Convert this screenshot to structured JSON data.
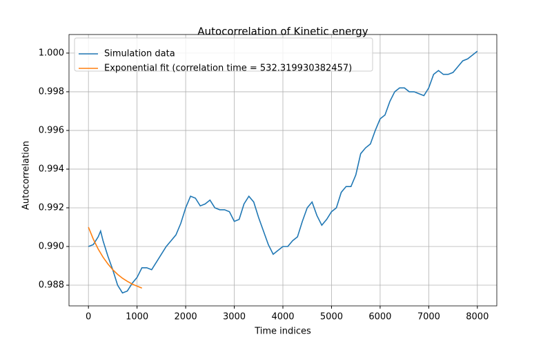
{
  "chart_data": {
    "type": "line",
    "title": "Autocorrelation of Kinetic energy",
    "x_label": "Time indices",
    "y_label": "Autocorrelation",
    "xlim": [
      -400,
      8400
    ],
    "ylim": [
      0.98693,
      1.00096
    ],
    "xticks": [
      0,
      1000,
      2000,
      3000,
      4000,
      5000,
      6000,
      7000,
      8000
    ],
    "yticks": [
      {
        "value": 0.988,
        "label": "0.988"
      },
      {
        "value": 0.99,
        "label": "0.990"
      },
      {
        "value": 0.992,
        "label": "0.992"
      },
      {
        "value": 0.994,
        "label": "0.994"
      },
      {
        "value": 0.996,
        "label": "0.996"
      },
      {
        "value": 0.998,
        "label": "0.998"
      },
      {
        "value": 1.0,
        "label": "1.000"
      }
    ],
    "grid": true,
    "legend": "upper left",
    "series": [
      {
        "name": "Simulation data",
        "color": "#1f77b4",
        "x": [
          0,
          100,
          200,
          250,
          300,
          400,
          500,
          600,
          700,
          800,
          900,
          1000,
          1100,
          1200,
          1300,
          1400,
          1500,
          1600,
          1700,
          1800,
          1900,
          2000,
          2100,
          2200,
          2300,
          2400,
          2500,
          2600,
          2700,
          2800,
          2900,
          3000,
          3100,
          3200,
          3300,
          3400,
          3500,
          3600,
          3700,
          3800,
          3900,
          4000,
          4100,
          4200,
          4300,
          4400,
          4500,
          4600,
          4700,
          4800,
          4900,
          5000,
          5100,
          5200,
          5300,
          5400,
          5500,
          5600,
          5700,
          5800,
          5900,
          6000,
          6100,
          6200,
          6300,
          6400,
          6500,
          6600,
          6700,
          6800,
          6900,
          7000,
          7100,
          7200,
          7300,
          7400,
          7500,
          7600,
          7700,
          7800,
          7900,
          8000
        ],
        "values": [
          0.99,
          0.9901,
          0.9905,
          0.9908,
          0.9903,
          0.9895,
          0.9888,
          0.988,
          0.9876,
          0.9877,
          0.9881,
          0.9884,
          0.9889,
          0.9889,
          0.9888,
          0.9892,
          0.9896,
          0.99,
          0.9903,
          0.9906,
          0.9912,
          0.992,
          0.9926,
          0.9925,
          0.9921,
          0.9922,
          0.9924,
          0.992,
          0.9919,
          0.9919,
          0.9918,
          0.9913,
          0.9914,
          0.9922,
          0.9926,
          0.9923,
          0.9915,
          0.9908,
          0.9901,
          0.9896,
          0.9898,
          0.99,
          0.99,
          0.9903,
          0.9905,
          0.9913,
          0.992,
          0.9923,
          0.9916,
          0.9911,
          0.9914,
          0.9918,
          0.992,
          0.9928,
          0.9931,
          0.9931,
          0.9937,
          0.9948,
          0.9951,
          0.9953,
          0.996,
          0.9966,
          0.9968,
          0.9975,
          0.998,
          0.9982,
          0.9982,
          0.998,
          0.998,
          0.9979,
          0.9978,
          0.9982,
          0.9989,
          0.9991,
          0.9989,
          0.9989,
          0.999,
          0.9993,
          0.9996,
          0.9997,
          0.9999,
          1.0001
        ]
      },
      {
        "name": "Exponential fit (correlation time = 532.319930382457)",
        "color": "#ff7f0e",
        "x": [
          0,
          100,
          200,
          300,
          400,
          500,
          600,
          700,
          800,
          900,
          1000,
          1100
        ],
        "values": [
          0.991,
          0.99038,
          0.98987,
          0.98945,
          0.9891,
          0.9888,
          0.98856,
          0.98836,
          0.9882,
          0.98806,
          0.98795,
          0.98785
        ]
      }
    ]
  }
}
